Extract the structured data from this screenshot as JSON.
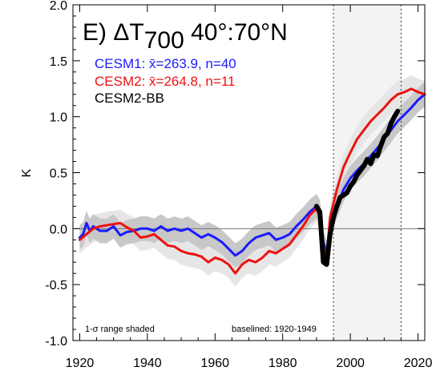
{
  "chart_data": {
    "type": "line",
    "title_prefix": "E) ",
    "title_delta": "ΔT",
    "title_sub": "700",
    "title_suffix": " 40°:70°N",
    "ylabel": "K",
    "xlim": [
      1918,
      2022
    ],
    "ylim": [
      -1.0,
      2.0
    ],
    "x_ticks": [
      "1920",
      "1940",
      "1960",
      "1980",
      "2000",
      "2020"
    ],
    "x_tick_values": [
      1920,
      1940,
      1960,
      1980,
      2000,
      2020
    ],
    "y_ticks": [
      "2.0",
      "1.5",
      "1.0",
      "0.5",
      "0.0",
      "-0.5",
      "-1.0"
    ],
    "y_tick_values": [
      2.0,
      1.5,
      1.0,
      0.5,
      0.0,
      -0.5,
      -1.0
    ],
    "shaded_period": [
      1995,
      2015
    ],
    "dashed_lines": [
      1995,
      2015
    ],
    "zero_line": 0.0,
    "annotations": {
      "left": "1-σ range shaded",
      "right": "baselined: 1920-1949"
    },
    "series": [
      {
        "name": "CESM1",
        "legend": "CESM1: x̄=263.9, n=40",
        "color": "#1a1aff",
        "band_color": "#c8c8c8",
        "band_sd": 0.11,
        "x": [
          1920,
          1921,
          1922,
          1923,
          1924,
          1926,
          1928,
          1930,
          1932,
          1934,
          1936,
          1938,
          1940,
          1942,
          1944,
          1946,
          1948,
          1950,
          1952,
          1954,
          1956,
          1958,
          1960,
          1962,
          1964,
          1966,
          1968,
          1970,
          1972,
          1974,
          1976,
          1978,
          1980,
          1982,
          1984,
          1986,
          1988,
          1990,
          1991,
          1992,
          1993,
          1994,
          1996,
          1998,
          2000,
          2002,
          2004,
          2006,
          2008,
          2010,
          2012,
          2014,
          2016,
          2018,
          2020,
          2022
        ],
        "y": [
          -0.08,
          -0.05,
          0.05,
          -0.02,
          0.02,
          -0.02,
          -0.02,
          0.02,
          -0.06,
          -0.03,
          -0.02,
          0.0,
          0.0,
          -0.02,
          0.02,
          -0.02,
          0.0,
          -0.02,
          0.0,
          -0.04,
          -0.08,
          -0.05,
          -0.08,
          -0.12,
          -0.18,
          -0.24,
          -0.2,
          -0.13,
          -0.08,
          -0.06,
          -0.04,
          -0.1,
          -0.08,
          -0.05,
          0.02,
          0.08,
          0.15,
          0.2,
          0.15,
          -0.12,
          -0.22,
          0.05,
          0.2,
          0.35,
          0.45,
          0.52,
          0.58,
          0.65,
          0.72,
          0.8,
          0.88,
          0.96,
          1.02,
          1.08,
          1.15,
          1.2
        ]
      },
      {
        "name": "CESM2",
        "legend": "CESM2: x̄=264.8, n=11",
        "color": "#ee1111",
        "band_color": "#e6e6e6",
        "band_sd": 0.12,
        "x": [
          1920,
          1922,
          1924,
          1926,
          1928,
          1930,
          1932,
          1934,
          1936,
          1938,
          1940,
          1942,
          1944,
          1946,
          1948,
          1950,
          1952,
          1954,
          1956,
          1958,
          1960,
          1962,
          1964,
          1966,
          1968,
          1970,
          1972,
          1974,
          1976,
          1978,
          1980,
          1982,
          1984,
          1986,
          1988,
          1990,
          1991,
          1992,
          1993,
          1994,
          1996,
          1998,
          2000,
          2002,
          2004,
          2006,
          2008,
          2010,
          2012,
          2014,
          2016,
          2018,
          2020,
          2022
        ],
        "y": [
          -0.1,
          -0.05,
          0.0,
          0.02,
          0.03,
          0.04,
          0.05,
          0.01,
          -0.02,
          -0.08,
          -0.07,
          -0.05,
          -0.1,
          -0.15,
          -0.16,
          -0.2,
          -0.22,
          -0.23,
          -0.25,
          -0.3,
          -0.26,
          -0.28,
          -0.32,
          -0.4,
          -0.32,
          -0.28,
          -0.3,
          -0.26,
          -0.2,
          -0.22,
          -0.18,
          -0.14,
          -0.06,
          0.02,
          0.12,
          0.18,
          0.1,
          -0.18,
          -0.25,
          0.1,
          0.35,
          0.55,
          0.68,
          0.8,
          0.88,
          0.96,
          1.02,
          1.08,
          1.15,
          1.2,
          1.22,
          1.25,
          1.22,
          1.2
        ]
      },
      {
        "name": "CESM2-BB",
        "legend": "CESM2-BB",
        "color": "#000000",
        "x": [
          1990,
          1991,
          1992,
          1993,
          1994,
          1995,
          1996,
          1997,
          1998,
          1999,
          2000,
          2001,
          2002,
          2003,
          2004,
          2005,
          2006,
          2007,
          2008,
          2009,
          2010,
          2011,
          2012,
          2013,
          2014
        ],
        "y": [
          0.2,
          0.15,
          -0.3,
          -0.32,
          -0.05,
          0.1,
          0.2,
          0.28,
          0.3,
          0.32,
          0.38,
          0.42,
          0.48,
          0.52,
          0.56,
          0.62,
          0.58,
          0.66,
          0.65,
          0.74,
          0.82,
          0.85,
          0.94,
          1.0,
          1.05
        ]
      }
    ]
  }
}
